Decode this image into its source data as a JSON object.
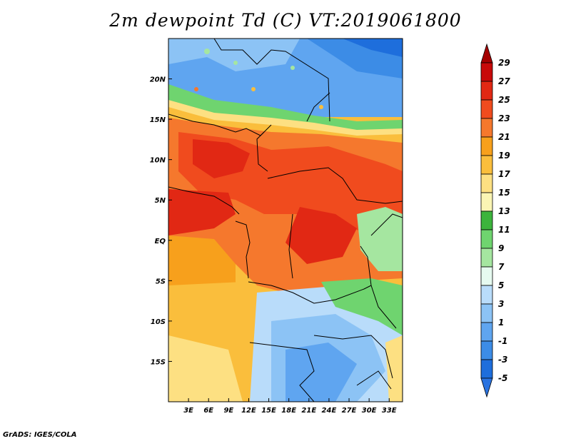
{
  "title": "2m dewpoint Td (C) VT:2019061800",
  "credit": "GrADS: IGES/COLA",
  "map": {
    "lon_range": [
      0,
      35
    ],
    "lat_range": [
      -20,
      25
    ],
    "lat_tick_labels": [
      "20N",
      "15N",
      "10N",
      "5N",
      "EQ",
      "5S",
      "10S",
      "15S"
    ],
    "lon_tick_labels": [
      "3E",
      "6E",
      "9E",
      "12E",
      "15E",
      "18E",
      "21E",
      "24E",
      "27E",
      "30E",
      "33E"
    ]
  },
  "colorbar": {
    "labels": [
      "29",
      "27",
      "25",
      "23",
      "21",
      "19",
      "17",
      "15",
      "13",
      "11",
      "9",
      "7",
      "5",
      "3",
      "1",
      "-1",
      "-3",
      "-5"
    ],
    "colors": [
      "#a50000",
      "#c80a0a",
      "#e12814",
      "#f04b1e",
      "#f5782d",
      "#f7a01c",
      "#fabe3c",
      "#fde082",
      "#faf5b4",
      "#3cb43c",
      "#6fd46f",
      "#a5e6a0",
      "#e6faf0",
      "#b9dcfa",
      "#8cc3f5",
      "#5fa5f0",
      "#3c8ce6",
      "#1e6edc",
      "#2a73e0"
    ]
  }
}
